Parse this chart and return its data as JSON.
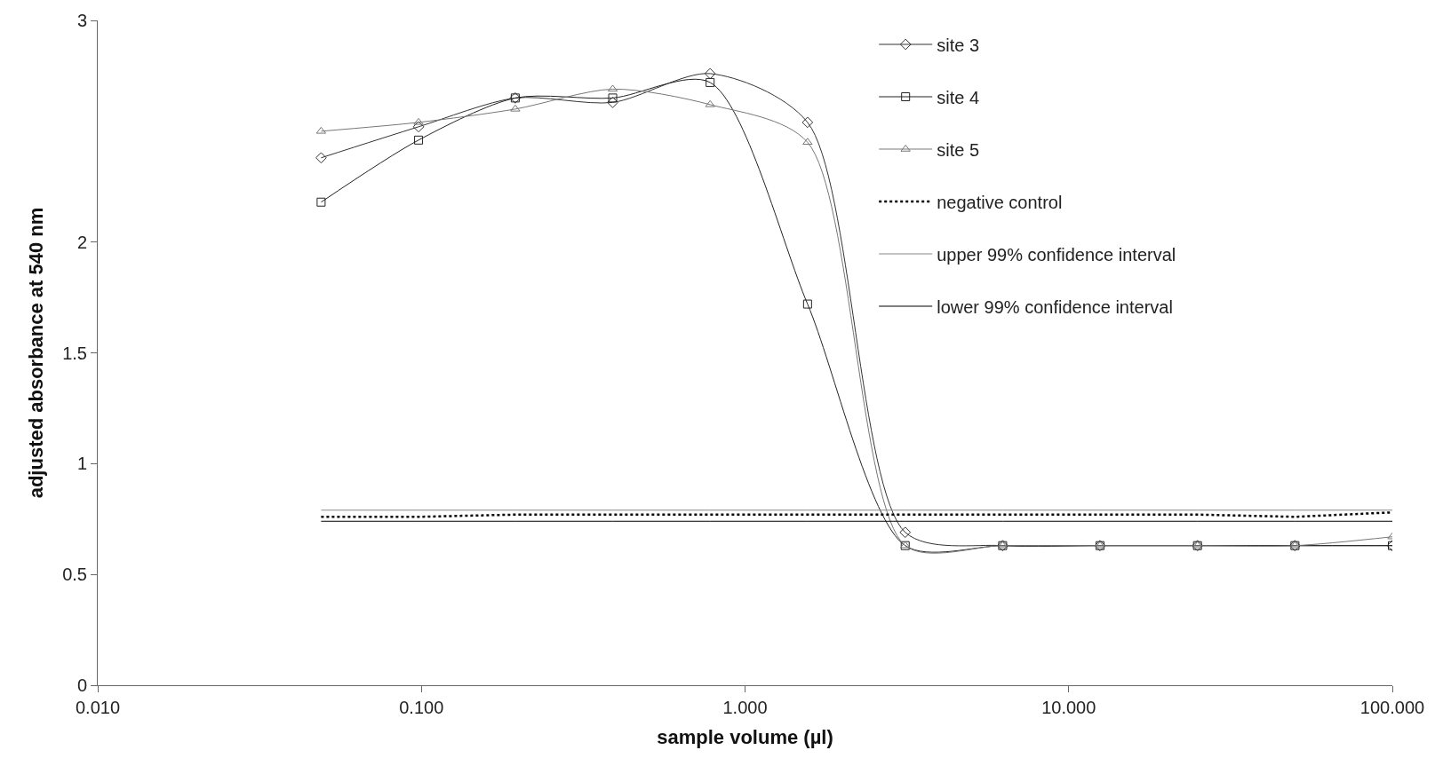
{
  "chart_data": {
    "type": "line",
    "xlabel": "sample volume (µl)",
    "ylabel": "adjusted absorbance at 540 nm",
    "log": "x",
    "xlim": [
      0.01,
      100
    ],
    "xticks": [
      {
        "value": 0.01,
        "label": "0.010"
      },
      {
        "value": 0.1,
        "label": "0.100"
      },
      {
        "value": 1,
        "label": "1.000"
      },
      {
        "value": 10,
        "label": "10.000"
      },
      {
        "value": 100,
        "label": "100.000"
      }
    ],
    "ylim": [
      0,
      3
    ],
    "yticks": [
      0,
      0.5,
      1,
      1.5,
      2,
      3
    ],
    "legend": "top right",
    "x": [
      0.049,
      0.098,
      0.195,
      0.39,
      0.78,
      1.56,
      3.125,
      6.25,
      12.5,
      25,
      50,
      100
    ],
    "series": [
      {
        "name": "site 3",
        "color": "#333333",
        "marker": "diamond",
        "line_style": "solid",
        "values": [
          2.38,
          2.52,
          2.65,
          2.63,
          2.76,
          2.54,
          0.69,
          0.63,
          0.63,
          0.63,
          0.63,
          0.63
        ]
      },
      {
        "name": "site 4",
        "color": "#222222",
        "marker": "square",
        "line_style": "solid",
        "values": [
          2.18,
          2.46,
          2.65,
          2.65,
          2.72,
          1.72,
          0.63,
          0.63,
          0.63,
          0.63,
          0.63,
          0.63
        ]
      },
      {
        "name": "site 5",
        "color": "#777777",
        "marker": "triangle",
        "line_style": "solid",
        "values": [
          2.5,
          2.54,
          2.6,
          2.69,
          2.62,
          2.45,
          0.63,
          0.63,
          0.63,
          0.63,
          0.63,
          0.67
        ]
      },
      {
        "name": "negative control",
        "color": "#000000",
        "marker": "none",
        "line_style": "dotted",
        "values": [
          0.76,
          0.76,
          0.77,
          0.77,
          0.77,
          0.77,
          0.77,
          0.77,
          0.77,
          0.77,
          0.76,
          0.78
        ]
      },
      {
        "name": "upper 99% confidence interval",
        "color": "#888888",
        "marker": "none",
        "line_style": "solid",
        "values": [
          0.79,
          0.79,
          0.79,
          0.79,
          0.79,
          0.79,
          0.79,
          0.79,
          0.79,
          0.79,
          0.79,
          0.79
        ]
      },
      {
        "name": "lower 99% confidence interval",
        "color": "#000000",
        "marker": "none",
        "line_style": "solid",
        "values": [
          0.74,
          0.74,
          0.74,
          0.74,
          0.74,
          0.74,
          0.74,
          0.74,
          0.74,
          0.74,
          0.74,
          0.74
        ]
      }
    ]
  }
}
